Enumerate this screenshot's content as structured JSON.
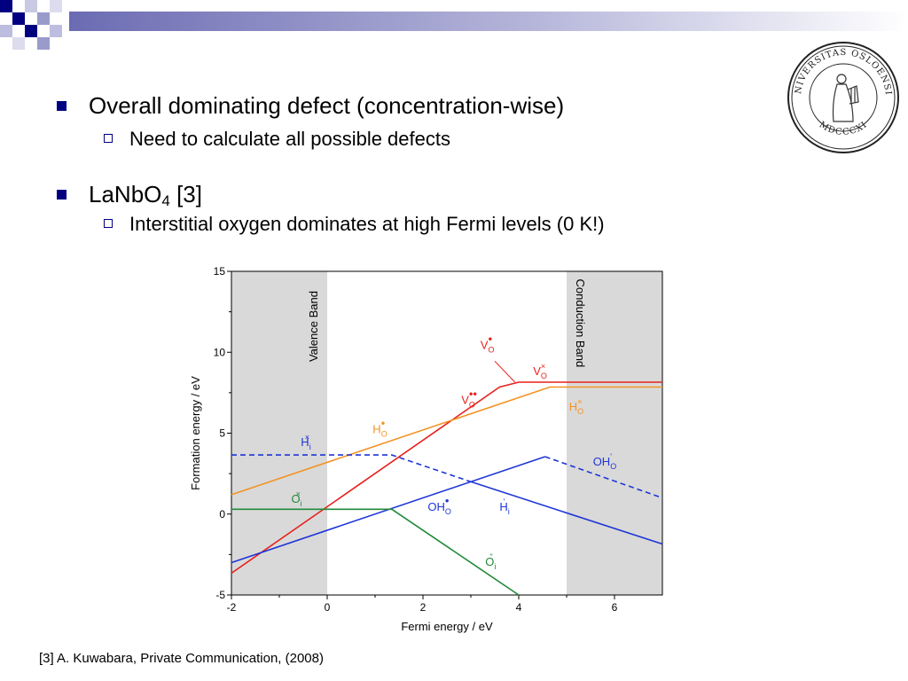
{
  "slide": {
    "bullets": [
      {
        "text": "Overall dominating defect (concentration-wise)",
        "sub": [
          "Need to calculate all possible defects"
        ]
      },
      {
        "text_main": "LaNbO",
        "text_sub": "4",
        "text_after": " [3]",
        "sub": [
          "Interstitial oxygen dominates at high Fermi levels (0 K!)"
        ]
      }
    ],
    "reference": "[3] A. Kuwabara, Private Communication, (2008)"
  },
  "logo": {
    "seal_text": "UNIVERSITAS OSLOENSIS",
    "seal_year": "MDCCCXI"
  },
  "theme": {
    "accent": "#000080"
  },
  "chart_data": {
    "type": "line",
    "xlabel": "Fermi energy / eV",
    "ylabel": "Formation energy / eV",
    "xlim": [
      -2,
      7
    ],
    "ylim": [
      -5,
      15
    ],
    "xticks": [
      -2,
      0,
      2,
      4,
      6
    ],
    "yticks": [
      -5,
      0,
      5,
      10,
      15
    ],
    "regions": [
      {
        "label": "Valence Band",
        "x": [
          -2,
          0
        ],
        "color": "#d9d9d9"
      },
      {
        "label": "Conduction Band",
        "x": [
          5,
          7
        ],
        "color": "#d9d9d9"
      }
    ],
    "series": [
      {
        "id": "vo",
        "color": "#e8201c",
        "dash": false,
        "points": [
          [
            -2,
            -3.65
          ],
          [
            3.6,
            7.85
          ],
          [
            4.0,
            8.15
          ],
          [
            7,
            8.15
          ]
        ]
      },
      {
        "id": "ho",
        "color": "#f39325",
        "dash": false,
        "points": [
          [
            -2,
            1.2
          ],
          [
            4.65,
            7.85
          ],
          [
            7,
            7.85
          ]
        ]
      },
      {
        "id": "hi_pos",
        "color": "#1f35d6",
        "dash": true,
        "points": [
          [
            -2,
            3.65
          ],
          [
            1.35,
            3.65
          ],
          [
            3.0,
            2.0
          ]
        ]
      },
      {
        "id": "hi_neg",
        "color": "#1f35d6",
        "dash": false,
        "points": [
          [
            3.0,
            2.0
          ],
          [
            7,
            -1.85
          ]
        ]
      },
      {
        "id": "oh_pos",
        "color": "#1f35d6",
        "dash": false,
        "points": [
          [
            -2,
            -3.0
          ],
          [
            4.55,
            3.55
          ]
        ]
      },
      {
        "id": "oh_neg",
        "color": "#1f35d6",
        "dash": true,
        "points": [
          [
            4.55,
            3.55
          ],
          [
            7,
            1.0
          ]
        ]
      },
      {
        "id": "oi_neutral",
        "color": "#218a3a",
        "dash": false,
        "points": [
          [
            -2,
            0.3
          ],
          [
            1.35,
            0.3
          ]
        ]
      },
      {
        "id": "oi_dneg",
        "color": "#218a3a",
        "dash": false,
        "points": [
          [
            1.35,
            0.3
          ],
          [
            4.0,
            -5.0
          ]
        ]
      }
    ],
    "labels": [
      {
        "id": "VO_dot",
        "main": "V",
        "sub": "O",
        "sup": "•",
        "x": 3.2,
        "y": 10.2,
        "color": "#e8201c"
      },
      {
        "id": "VO_x",
        "main": "V",
        "sub": "O",
        "sup": "×",
        "x": 4.3,
        "y": 8.6,
        "color": "#e8201c"
      },
      {
        "id": "VO_2dot",
        "main": "V",
        "sub": "O",
        "sup": "••",
        "x": 2.8,
        "y": 6.8,
        "color": "#e8201c"
      },
      {
        "id": "HO_dot",
        "main": "H",
        "sub": "O",
        "sup": "•",
        "x": 0.95,
        "y": 5.0,
        "color": "#f39325"
      },
      {
        "id": "HO_x",
        "main": "H",
        "sub": "O",
        "sup": "×",
        "x": 5.05,
        "y": 6.4,
        "color": "#f39325"
      },
      {
        "id": "Hi_x",
        "main": "H",
        "sub": "i",
        "sup": "×",
        "x": -0.55,
        "y": 4.2,
        "color": "#1f35d6"
      },
      {
        "id": "OHO_prime",
        "main": "OH",
        "sub": "O",
        "sup": "'",
        "x": 5.55,
        "y": 3.0,
        "color": "#1f35d6"
      },
      {
        "id": "OHO_dot",
        "main": "OH",
        "sub": "O",
        "sup": "•",
        "x": 2.1,
        "y": 0.2,
        "color": "#1f35d6"
      },
      {
        "id": "Hi_prime",
        "main": "H",
        "sub": "i",
        "sup": "'",
        "x": 3.6,
        "y": 0.2,
        "color": "#1f35d6"
      },
      {
        "id": "Oi_x",
        "main": "O",
        "sub": "i",
        "sup": "×",
        "x": -0.75,
        "y": 0.7,
        "color": "#218a3a"
      },
      {
        "id": "Oi_2prime",
        "main": "O",
        "sub": "i",
        "sup": "''",
        "x": 3.3,
        "y": -3.2,
        "color": "#218a3a"
      }
    ],
    "leaders": [
      {
        "from": [
          3.5,
          9.45
        ],
        "to": [
          3.92,
          8.15
        ],
        "color": "#e8201c"
      }
    ]
  }
}
